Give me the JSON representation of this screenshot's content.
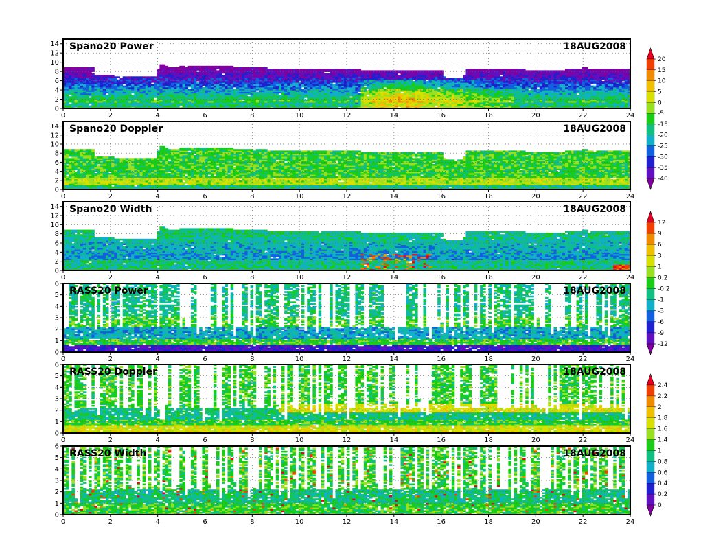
{
  "chart_data": [
    {
      "type": "heatmap",
      "title": "Spano20 Power",
      "date": "18AUG2008",
      "x_ticks": [
        "0",
        "2",
        "4",
        "6",
        "8",
        "10",
        "12",
        "14",
        "16",
        "18",
        "20",
        "22",
        "24"
      ],
      "y_ticks": [
        "0",
        "2",
        "4",
        "6",
        "8",
        "10",
        "12",
        "14"
      ],
      "ylim": [
        0,
        15
      ],
      "xlim": [
        0,
        24
      ],
      "colorbar": {
        "labels": [
          "20",
          "15",
          "10",
          "5",
          "0",
          "-5",
          "-15",
          "-20",
          "-25",
          "-30",
          "-35",
          "-40"
        ],
        "colors": [
          "#e8001e",
          "#f04000",
          "#f08a00",
          "#f0c000",
          "#d8e000",
          "#98e020",
          "#18cc18",
          "#10c080",
          "#10b0c8",
          "#1060e0",
          "#2020d0",
          "#6010c0",
          "#8000a0"
        ]
      },
      "grid": true
    },
    {
      "type": "heatmap",
      "title": "Spano20 Doppler",
      "date": "18AUG2008",
      "x_ticks": [
        "0",
        "2",
        "4",
        "6",
        "8",
        "10",
        "12",
        "14",
        "16",
        "18",
        "20",
        "22",
        "24"
      ],
      "y_ticks": [
        "0",
        "2",
        "4",
        "6",
        "8",
        "10",
        "12",
        "14"
      ],
      "ylim": [
        0,
        15
      ],
      "xlim": [
        0,
        24
      ],
      "grid": true
    },
    {
      "type": "heatmap",
      "title": "Spano20 Width",
      "date": "18AUG2008",
      "x_ticks": [
        "0",
        "2",
        "4",
        "6",
        "8",
        "10",
        "12",
        "14",
        "16",
        "18",
        "20",
        "22",
        "24"
      ],
      "y_ticks": [
        "0",
        "2",
        "4",
        "6",
        "8",
        "10",
        "12",
        "14"
      ],
      "ylim": [
        0,
        15
      ],
      "xlim": [
        0,
        24
      ],
      "colorbar": {
        "labels": [
          "12",
          "9",
          "6",
          "3",
          "1",
          "0.2",
          "-0.2",
          "-1",
          "-3",
          "-6",
          "-9",
          "-12"
        ],
        "colors": [
          "#e8001e",
          "#f04000",
          "#f08a00",
          "#f0c000",
          "#d8e000",
          "#98e020",
          "#18cc18",
          "#10c080",
          "#10b0c8",
          "#1060e0",
          "#2020d0",
          "#6010c0",
          "#8000a0"
        ]
      },
      "grid": true
    },
    {
      "type": "heatmap",
      "title": "RASS20 Power",
      "date": "18AUG2008",
      "x_ticks": [
        "0",
        "2",
        "4",
        "6",
        "8",
        "10",
        "12",
        "14",
        "16",
        "18",
        "20",
        "22",
        "24"
      ],
      "y_ticks": [
        "0",
        "1",
        "2",
        "3",
        "4",
        "5",
        "6"
      ],
      "ylim": [
        0,
        6
      ],
      "xlim": [
        0,
        24
      ],
      "grid": true
    },
    {
      "type": "heatmap",
      "title": "RASS20 Doppler",
      "date": "18AUG2008",
      "x_ticks": [
        "0",
        "2",
        "4",
        "6",
        "8",
        "10",
        "12",
        "14",
        "16",
        "18",
        "20",
        "22",
        "24"
      ],
      "y_ticks": [
        "0",
        "1",
        "2",
        "3",
        "4",
        "5",
        "6"
      ],
      "ylim": [
        0,
        6
      ],
      "xlim": [
        0,
        24
      ],
      "colorbar": {
        "labels": [
          "2.4",
          "2.2",
          "2",
          "1.8",
          "1.6",
          "1.4",
          "1",
          "0.8",
          "0.6",
          "0.4",
          "0.2",
          "0"
        ],
        "colors": [
          "#e8001e",
          "#f04000",
          "#f08a00",
          "#f0c000",
          "#d8e000",
          "#98e020",
          "#18cc18",
          "#10c080",
          "#10b0c8",
          "#1060e0",
          "#2020d0",
          "#6010c0",
          "#8000a0"
        ]
      },
      "grid": true
    },
    {
      "type": "heatmap",
      "title": "RASS20 Width",
      "date": "18AUG2008",
      "x_ticks": [
        "0",
        "2",
        "4",
        "6",
        "8",
        "10",
        "12",
        "14",
        "16",
        "18",
        "20",
        "22",
        "24"
      ],
      "y_ticks": [
        "0",
        "1",
        "2",
        "3",
        "4",
        "5",
        "6"
      ],
      "ylim": [
        0,
        6
      ],
      "xlim": [
        0,
        24
      ],
      "grid": true
    }
  ]
}
